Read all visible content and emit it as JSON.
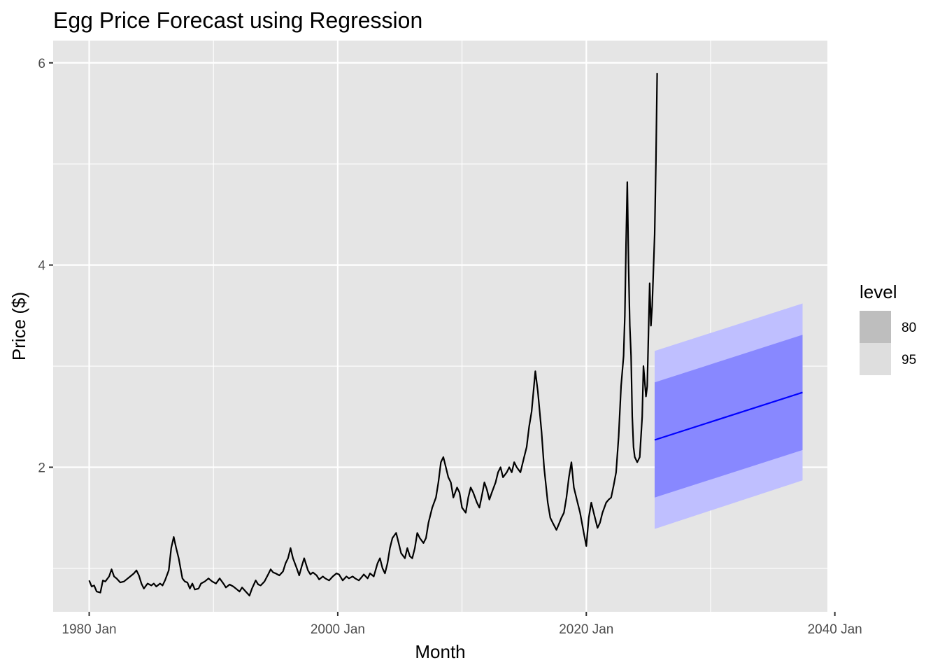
{
  "chart_data": {
    "type": "line",
    "title": "Egg Price Forecast using Regression",
    "xlabel": "Month",
    "ylabel": "Price ($)",
    "xlim": [
      1977.1,
      2039.4
    ],
    "ylim": [
      0.57,
      6.22
    ],
    "x_major_ticks": [
      {
        "x": 1980,
        "label": "1980 Jan"
      },
      {
        "x": 2000,
        "label": "2000 Jan"
      },
      {
        "x": 2020,
        "label": "2020 Jan"
      },
      {
        "x": 2040,
        "label": "2040 Jan"
      }
    ],
    "x_minor_ticks": [
      1990,
      2010,
      2030
    ],
    "y_major_ticks": [
      {
        "y": 2,
        "label": "2"
      },
      {
        "y": 4,
        "label": "4"
      },
      {
        "y": 6,
        "label": "6"
      }
    ],
    "y_minor_ticks": [
      1,
      3,
      5
    ],
    "grid": true,
    "colors": {
      "panel": "#e5e5e5",
      "grid": "#ffffff",
      "history": "#000000",
      "forecast": "#0000ff",
      "band80": "#8888ff",
      "band95": "#bfbfff",
      "legend80": "#bebebe",
      "legend95": "#dedede"
    },
    "series": [
      {
        "name": "history",
        "points": [
          [
            1980.0,
            0.88
          ],
          [
            1980.2,
            0.82
          ],
          [
            1980.4,
            0.83
          ],
          [
            1980.6,
            0.77
          ],
          [
            1980.9,
            0.76
          ],
          [
            1981.1,
            0.88
          ],
          [
            1981.3,
            0.87
          ],
          [
            1981.6,
            0.92
          ],
          [
            1981.8,
            0.99
          ],
          [
            1982.0,
            0.92
          ],
          [
            1982.2,
            0.9
          ],
          [
            1982.5,
            0.86
          ],
          [
            1982.8,
            0.87
          ],
          [
            1983.0,
            0.89
          ],
          [
            1983.3,
            0.92
          ],
          [
            1983.6,
            0.95
          ],
          [
            1983.8,
            0.98
          ],
          [
            1984.0,
            0.93
          ],
          [
            1984.2,
            0.85
          ],
          [
            1984.4,
            0.8
          ],
          [
            1984.7,
            0.85
          ],
          [
            1985.0,
            0.83
          ],
          [
            1985.2,
            0.85
          ],
          [
            1985.4,
            0.82
          ],
          [
            1985.7,
            0.85
          ],
          [
            1985.9,
            0.83
          ],
          [
            1986.1,
            0.88
          ],
          [
            1986.4,
            0.98
          ],
          [
            1986.6,
            1.2
          ],
          [
            1986.8,
            1.31
          ],
          [
            1987.0,
            1.2
          ],
          [
            1987.2,
            1.1
          ],
          [
            1987.5,
            0.9
          ],
          [
            1987.7,
            0.87
          ],
          [
            1987.9,
            0.86
          ],
          [
            1988.1,
            0.8
          ],
          [
            1988.3,
            0.85
          ],
          [
            1988.5,
            0.79
          ],
          [
            1988.8,
            0.8
          ],
          [
            1989.0,
            0.85
          ],
          [
            1989.3,
            0.87
          ],
          [
            1989.6,
            0.9
          ],
          [
            1989.9,
            0.87
          ],
          [
            1990.2,
            0.85
          ],
          [
            1990.5,
            0.9
          ],
          [
            1990.8,
            0.85
          ],
          [
            1991.0,
            0.81
          ],
          [
            1991.3,
            0.84
          ],
          [
            1991.6,
            0.82
          ],
          [
            1991.9,
            0.79
          ],
          [
            1992.1,
            0.77
          ],
          [
            1992.3,
            0.81
          ],
          [
            1992.6,
            0.77
          ],
          [
            1992.9,
            0.73
          ],
          [
            1993.1,
            0.8
          ],
          [
            1993.4,
            0.88
          ],
          [
            1993.6,
            0.84
          ],
          [
            1993.8,
            0.83
          ],
          [
            1994.1,
            0.87
          ],
          [
            1994.4,
            0.94
          ],
          [
            1994.6,
            0.99
          ],
          [
            1994.8,
            0.96
          ],
          [
            1995.0,
            0.95
          ],
          [
            1995.3,
            0.93
          ],
          [
            1995.6,
            0.97
          ],
          [
            1995.8,
            1.05
          ],
          [
            1996.0,
            1.1
          ],
          [
            1996.2,
            1.2
          ],
          [
            1996.4,
            1.1
          ],
          [
            1996.7,
            1.0
          ],
          [
            1996.9,
            0.93
          ],
          [
            1997.1,
            1.02
          ],
          [
            1997.3,
            1.1
          ],
          [
            1997.6,
            0.98
          ],
          [
            1997.8,
            0.94
          ],
          [
            1998.0,
            0.96
          ],
          [
            1998.3,
            0.93
          ],
          [
            1998.5,
            0.89
          ],
          [
            1998.8,
            0.92
          ],
          [
            1999.0,
            0.9
          ],
          [
            1999.3,
            0.88
          ],
          [
            1999.6,
            0.92
          ],
          [
            1999.9,
            0.95
          ],
          [
            2000.1,
            0.94
          ],
          [
            2000.4,
            0.88
          ],
          [
            2000.7,
            0.92
          ],
          [
            2000.9,
            0.9
          ],
          [
            2001.2,
            0.92
          ],
          [
            2001.4,
            0.9
          ],
          [
            2001.7,
            0.88
          ],
          [
            2001.9,
            0.91
          ],
          [
            2002.1,
            0.94
          ],
          [
            2002.4,
            0.9
          ],
          [
            2002.6,
            0.95
          ],
          [
            2002.9,
            0.92
          ],
          [
            2003.2,
            1.05
          ],
          [
            2003.4,
            1.1
          ],
          [
            2003.6,
            1.0
          ],
          [
            2003.8,
            0.95
          ],
          [
            2004.0,
            1.05
          ],
          [
            2004.2,
            1.2
          ],
          [
            2004.4,
            1.3
          ],
          [
            2004.7,
            1.35
          ],
          [
            2004.9,
            1.25
          ],
          [
            2005.1,
            1.15
          ],
          [
            2005.4,
            1.1
          ],
          [
            2005.6,
            1.2
          ],
          [
            2005.8,
            1.12
          ],
          [
            2006.0,
            1.1
          ],
          [
            2006.2,
            1.2
          ],
          [
            2006.4,
            1.35
          ],
          [
            2006.6,
            1.3
          ],
          [
            2006.9,
            1.25
          ],
          [
            2007.1,
            1.3
          ],
          [
            2007.3,
            1.45
          ],
          [
            2007.6,
            1.6
          ],
          [
            2007.9,
            1.7
          ],
          [
            2008.1,
            1.85
          ],
          [
            2008.3,
            2.05
          ],
          [
            2008.5,
            2.1
          ],
          [
            2008.7,
            2.0
          ],
          [
            2008.9,
            1.9
          ],
          [
            2009.1,
            1.85
          ],
          [
            2009.3,
            1.7
          ],
          [
            2009.6,
            1.8
          ],
          [
            2009.8,
            1.75
          ],
          [
            2010.0,
            1.6
          ],
          [
            2010.3,
            1.55
          ],
          [
            2010.5,
            1.7
          ],
          [
            2010.7,
            1.8
          ],
          [
            2010.9,
            1.75
          ],
          [
            2011.2,
            1.65
          ],
          [
            2011.4,
            1.6
          ],
          [
            2011.6,
            1.72
          ],
          [
            2011.8,
            1.85
          ],
          [
            2012.0,
            1.78
          ],
          [
            2012.2,
            1.68
          ],
          [
            2012.4,
            1.75
          ],
          [
            2012.7,
            1.85
          ],
          [
            2012.9,
            1.95
          ],
          [
            2013.1,
            2.0
          ],
          [
            2013.3,
            1.9
          ],
          [
            2013.6,
            1.95
          ],
          [
            2013.8,
            2.0
          ],
          [
            2014.0,
            1.95
          ],
          [
            2014.2,
            2.05
          ],
          [
            2014.4,
            2.0
          ],
          [
            2014.7,
            1.95
          ],
          [
            2015.0,
            2.1
          ],
          [
            2015.2,
            2.2
          ],
          [
            2015.4,
            2.4
          ],
          [
            2015.6,
            2.55
          ],
          [
            2015.9,
            2.95
          ],
          [
            2016.1,
            2.75
          ],
          [
            2016.4,
            2.35
          ],
          [
            2016.6,
            2.0
          ],
          [
            2016.9,
            1.65
          ],
          [
            2017.1,
            1.5
          ],
          [
            2017.3,
            1.45
          ],
          [
            2017.6,
            1.38
          ],
          [
            2017.8,
            1.44
          ],
          [
            2018.0,
            1.5
          ],
          [
            2018.2,
            1.55
          ],
          [
            2018.4,
            1.7
          ],
          [
            2018.6,
            1.9
          ],
          [
            2018.8,
            2.05
          ],
          [
            2019.0,
            1.8
          ],
          [
            2019.3,
            1.65
          ],
          [
            2019.5,
            1.55
          ],
          [
            2019.8,
            1.35
          ],
          [
            2020.0,
            1.22
          ],
          [
            2020.2,
            1.5
          ],
          [
            2020.4,
            1.65
          ],
          [
            2020.6,
            1.55
          ],
          [
            2020.9,
            1.4
          ],
          [
            2021.1,
            1.45
          ],
          [
            2021.3,
            1.55
          ],
          [
            2021.6,
            1.65
          ],
          [
            2021.8,
            1.68
          ],
          [
            2022.0,
            1.7
          ],
          [
            2022.2,
            1.82
          ],
          [
            2022.4,
            1.95
          ],
          [
            2022.6,
            2.3
          ],
          [
            2022.8,
            2.8
          ],
          [
            2022.9,
            2.95
          ],
          [
            2023.0,
            3.1
          ],
          [
            2023.1,
            3.5
          ],
          [
            2023.2,
            4.2
          ],
          [
            2023.3,
            4.82
          ],
          [
            2023.4,
            4.0
          ],
          [
            2023.5,
            3.4
          ],
          [
            2023.6,
            3.1
          ],
          [
            2023.7,
            2.5
          ],
          [
            2023.8,
            2.2
          ],
          [
            2023.9,
            2.1
          ],
          [
            2024.1,
            2.05
          ],
          [
            2024.3,
            2.1
          ],
          [
            2024.5,
            2.5
          ],
          [
            2024.6,
            3.0
          ],
          [
            2024.8,
            2.7
          ],
          [
            2024.9,
            2.8
          ],
          [
            2025.0,
            3.3
          ],
          [
            2025.1,
            3.82
          ],
          [
            2025.2,
            3.4
          ],
          [
            2025.3,
            3.6
          ],
          [
            2025.5,
            4.3
          ],
          [
            2025.6,
            5.0
          ],
          [
            2025.7,
            5.9
          ]
        ]
      },
      {
        "name": "forecast",
        "points": [
          [
            2025.5,
            2.27
          ],
          [
            2037.4,
            2.74
          ]
        ]
      }
    ],
    "bands": [
      {
        "level": "95",
        "lower": [
          [
            2025.5,
            1.39
          ],
          [
            2037.4,
            1.87
          ]
        ],
        "upper": [
          [
            2025.5,
            3.15
          ],
          [
            2037.4,
            3.62
          ]
        ]
      },
      {
        "level": "80",
        "lower": [
          [
            2025.5,
            1.7
          ],
          [
            2037.4,
            2.17
          ]
        ],
        "upper": [
          [
            2025.5,
            2.84
          ],
          [
            2037.4,
            3.31
          ]
        ]
      }
    ],
    "legend": {
      "title": "level",
      "position": "right",
      "entries": [
        "80",
        "95"
      ]
    }
  }
}
